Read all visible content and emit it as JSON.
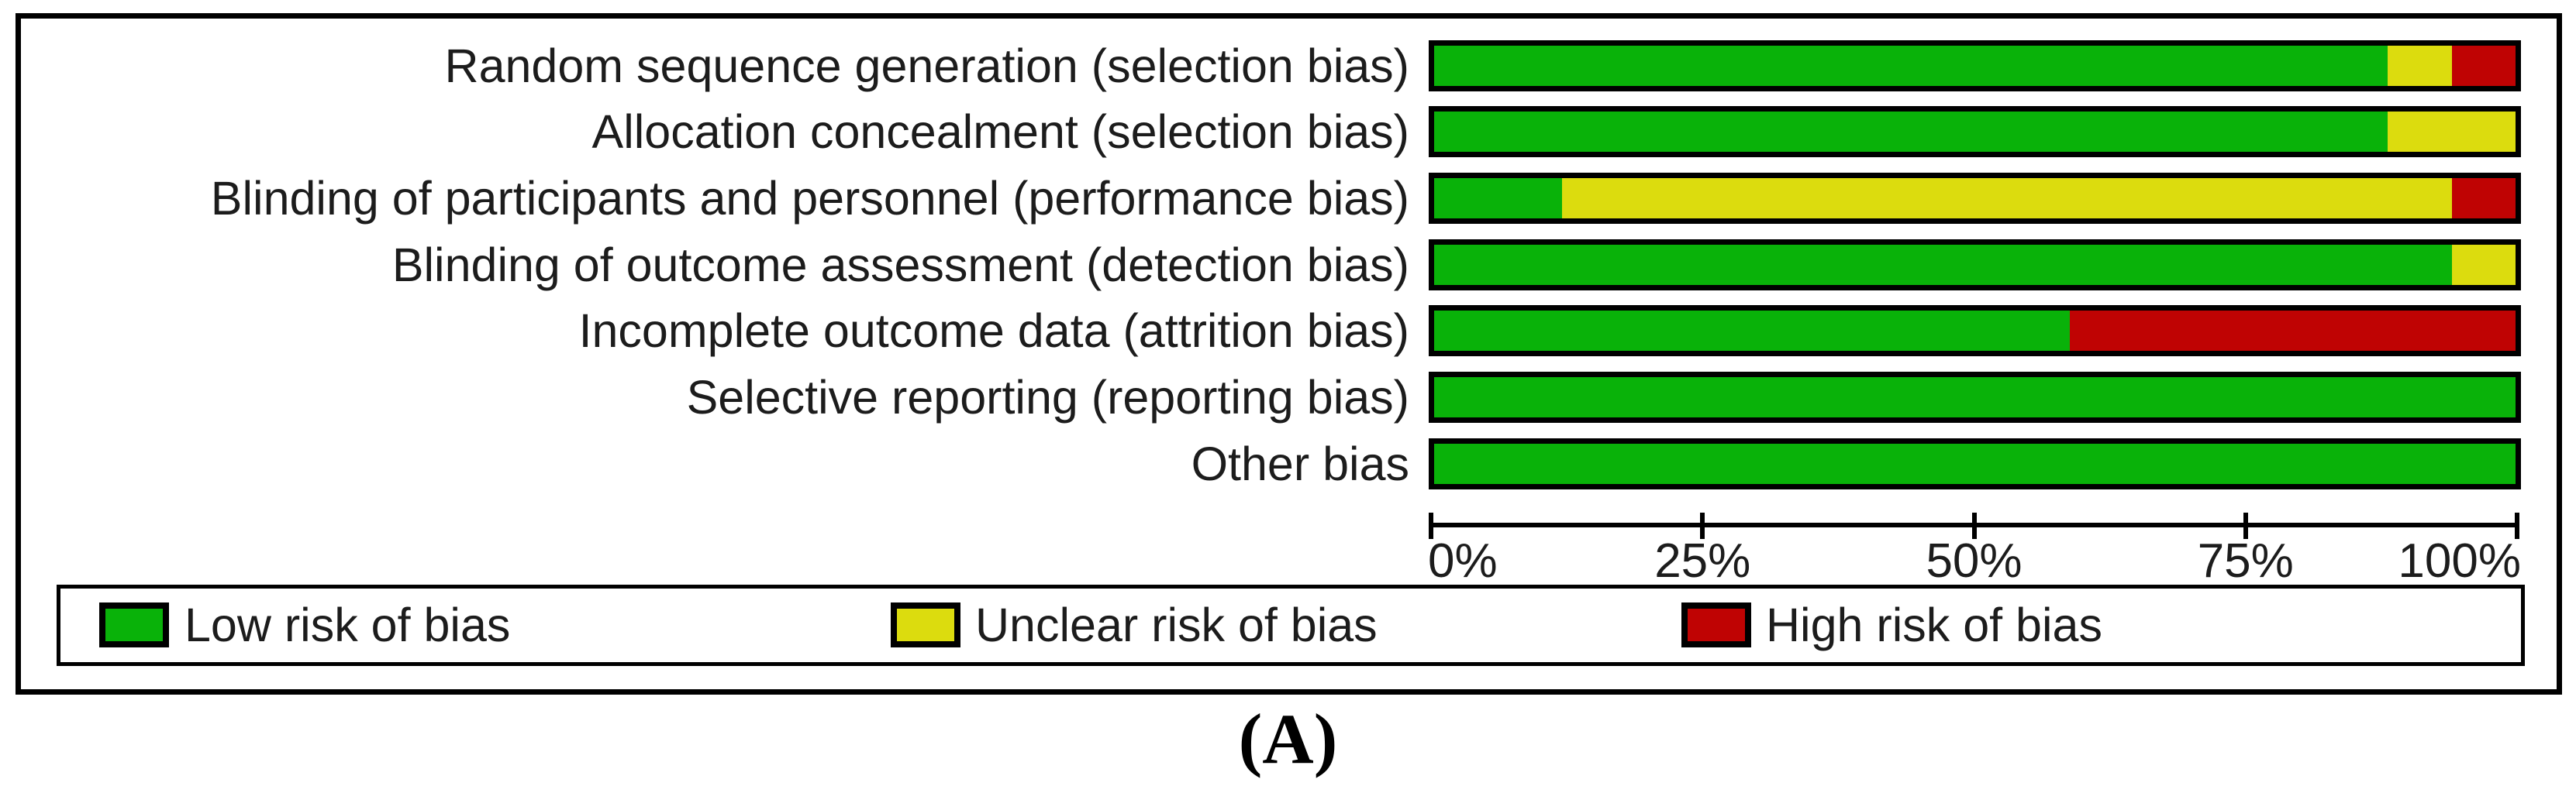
{
  "figure": {
    "caption": "(A)"
  },
  "colors": {
    "low": "#09b209",
    "unclear": "#dcdc0e",
    "high": "#bf0303",
    "border": "#000000"
  },
  "chart_data": {
    "type": "bar",
    "orientation": "horizontal_stacked",
    "title": "",
    "xlabel": "",
    "ylabel": "",
    "grid": false,
    "x_axis": {
      "range": [
        0,
        100
      ],
      "ticks": [
        "0%",
        "25%",
        "50%",
        "75%",
        "100%"
      ],
      "tick_values": [
        0,
        25,
        50,
        75,
        100
      ]
    },
    "categories": [
      "Random sequence generation (selection bias)",
      "Allocation concealment (selection bias)",
      "Blinding of participants and personnel (performance bias)",
      "Blinding of outcome assessment (detection bias)",
      "Incomplete outcome data (attrition bias)",
      "Selective reporting (reporting bias)",
      "Other bias"
    ],
    "series": [
      {
        "name": "Low risk of bias",
        "color_key": "low",
        "values": [
          88.2,
          88.2,
          11.8,
          94.1,
          58.8,
          100,
          100
        ]
      },
      {
        "name": "Unclear risk of bias",
        "color_key": "unclear",
        "values": [
          5.9,
          11.8,
          82.3,
          5.9,
          0,
          0,
          0
        ]
      },
      {
        "name": "High risk of bias",
        "color_key": "high",
        "values": [
          5.9,
          0,
          5.9,
          0,
          41.2,
          0,
          0
        ]
      }
    ],
    "legend": {
      "position": "bottom-box",
      "items": [
        {
          "label": "Low risk of bias",
          "color_key": "low"
        },
        {
          "label": "Unclear risk of bias",
          "color_key": "unclear"
        },
        {
          "label": "High risk of bias",
          "color_key": "high"
        }
      ]
    }
  }
}
